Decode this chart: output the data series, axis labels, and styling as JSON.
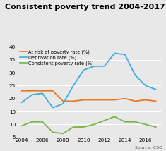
{
  "title": "Consistent poverty trend 2004-2017",
  "source": "Source: CSO",
  "years": [
    2004,
    2005,
    2006,
    2007,
    2008,
    2009,
    2010,
    2011,
    2012,
    2013,
    2014,
    2015,
    2016,
    2017
  ],
  "at_risk": [
    23.0,
    23.0,
    23.0,
    23.0,
    19.0,
    19.0,
    19.5,
    19.5,
    19.5,
    19.5,
    20.0,
    19.0,
    19.5,
    19.0
  ],
  "deprivation": [
    18.5,
    21.5,
    22.0,
    16.5,
    18.0,
    25.0,
    31.0,
    32.5,
    32.5,
    37.5,
    37.0,
    29.0,
    25.0,
    23.5
  ],
  "consistent": [
    9.5,
    11.0,
    11.0,
    7.0,
    6.5,
    9.0,
    9.0,
    10.0,
    11.5,
    13.0,
    11.0,
    11.0,
    10.0,
    9.0
  ],
  "at_risk_color": "#e87722",
  "deprivation_color": "#3daee0",
  "consistent_color": "#7ab648",
  "ylim": [
    5,
    40
  ],
  "yticks": [
    5,
    10,
    15,
    20,
    25,
    30,
    35,
    40
  ],
  "xticks": [
    2004,
    2006,
    2008,
    2010,
    2012,
    2014,
    2016
  ],
  "legend_labels": [
    "At risk of poverty rate (%)",
    "Deprivation rate (%)",
    "Consistent poverty rate (%)"
  ],
  "background_color": "#e8e8e8",
  "plot_bg_color": "#e8e8e8",
  "title_fontsize": 8.0,
  "legend_fontsize": 4.8,
  "tick_fontsize": 5.2,
  "source_fontsize": 4.5,
  "linewidth": 1.3
}
